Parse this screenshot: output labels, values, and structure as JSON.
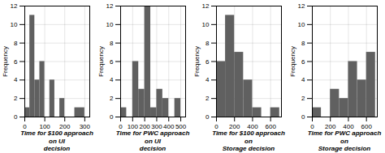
{
  "chart_data": [
    {
      "type": "histogram",
      "xlabel": "Time for $100 approach on UI\ndecision",
      "ylabel": "Frequency",
      "bins": [
        0,
        25,
        50,
        75,
        100,
        125,
        150,
        175,
        200,
        250,
        300
      ],
      "values": [
        1,
        11,
        4,
        6,
        0,
        4,
        0,
        2,
        0,
        1
      ],
      "xlim": [
        0,
        325
      ],
      "xticks": [
        0,
        100,
        200,
        300
      ],
      "ylim": [
        0,
        12
      ],
      "yticks": [
        0,
        2,
        4,
        6,
        8,
        10,
        12
      ],
      "color": "#606060",
      "grid": true
    },
    {
      "type": "histogram",
      "xlabel": "Time for PWC approach on UI\ndecision",
      "ylabel": "Frequency",
      "bins": [
        0,
        50,
        100,
        150,
        200,
        250,
        300,
        350,
        400,
        450,
        500
      ],
      "values": [
        1,
        0,
        6,
        3,
        12,
        1,
        3,
        2,
        0,
        2
      ],
      "xlim": [
        0,
        540
      ],
      "xticks": [
        0,
        100,
        200,
        300,
        400,
        500
      ],
      "ylim": [
        0,
        12
      ],
      "yticks": [
        0,
        2,
        4,
        6,
        8,
        10,
        12
      ],
      "color": "#606060",
      "grid": true
    },
    {
      "type": "histogram",
      "xlabel": "Time for $100 approach on\nStorage decision",
      "ylabel": "Frequency",
      "bins": [
        0,
        100,
        200,
        300,
        400,
        500,
        600,
        700
      ],
      "values": [
        6,
        11,
        7,
        4,
        1,
        0,
        1
      ],
      "xlim": [
        0,
        720
      ],
      "xticks": [
        0,
        200,
        400,
        600
      ],
      "ylim": [
        0,
        12
      ],
      "yticks": [
        0,
        2,
        4,
        6,
        8,
        10,
        12
      ],
      "color": "#606060",
      "grid": true
    },
    {
      "type": "histogram",
      "xlabel": "Time for PWC approach on\nStorage decision",
      "ylabel": "Frequency",
      "bins": [
        0,
        100,
        200,
        300,
        400,
        500,
        600,
        700
      ],
      "values": [
        1,
        0,
        3,
        2,
        6,
        4,
        7
      ],
      "xlim": [
        0,
        720
      ],
      "xticks": [
        0,
        200,
        400,
        600
      ],
      "ylim": [
        0,
        12
      ],
      "yticks": [
        0,
        2,
        4,
        6,
        8,
        10,
        12
      ],
      "color": "#606060",
      "grid": true
    }
  ]
}
